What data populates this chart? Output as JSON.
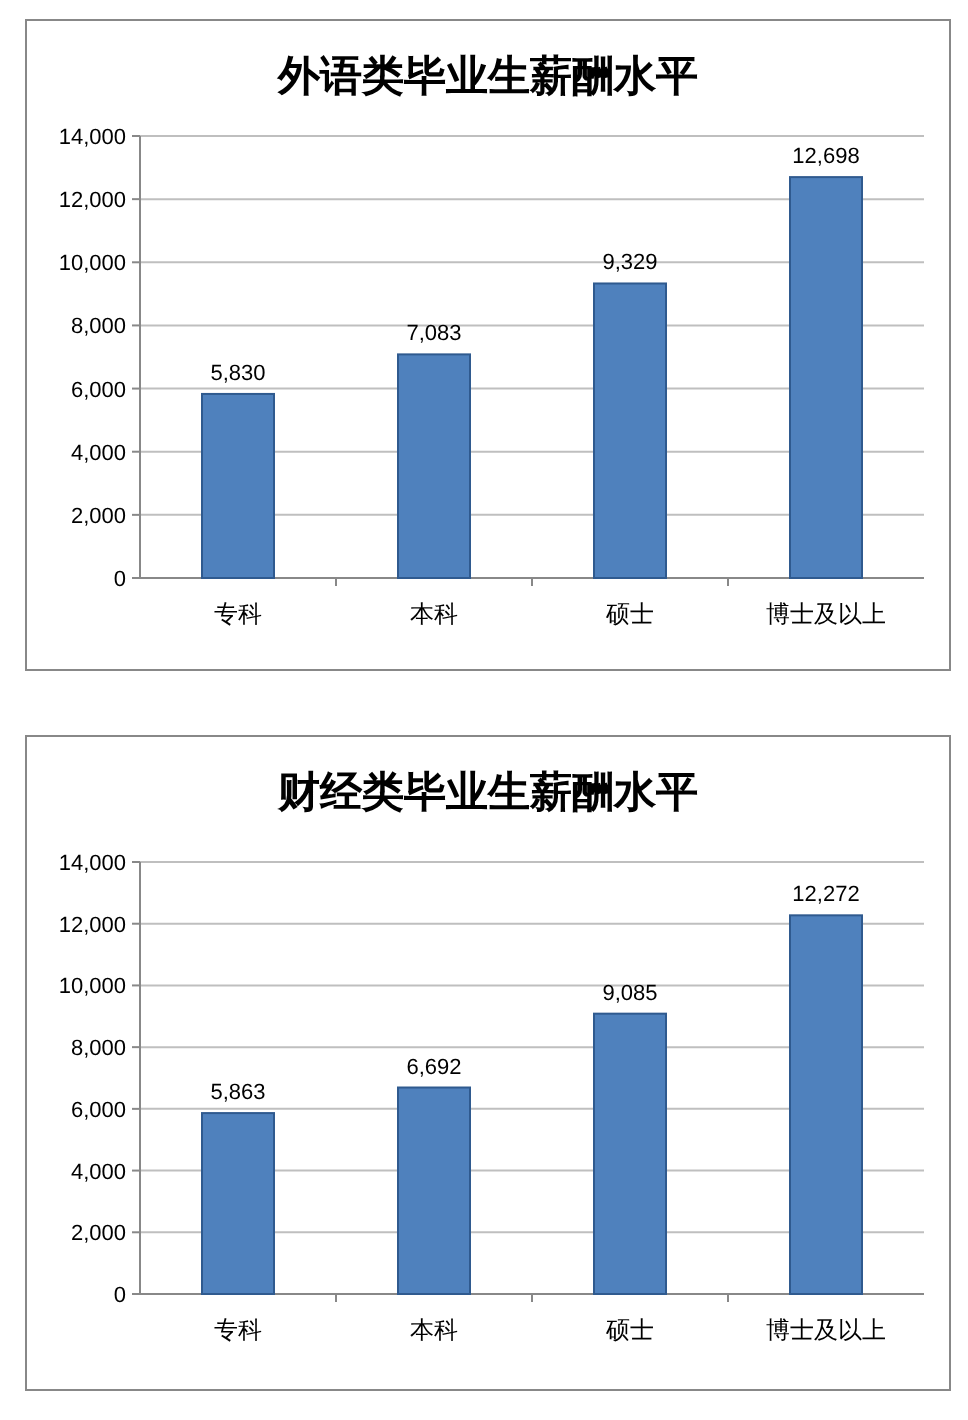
{
  "chart_data": [
    {
      "type": "bar",
      "title": "外语类毕业生薪酬水平",
      "categories": [
        "专科",
        "本科",
        "硕士",
        "博士及以上"
      ],
      "values": [
        5830,
        7083,
        9329,
        12698
      ],
      "value_labels": [
        "5,830",
        "7,083",
        "9,329",
        "12,698"
      ],
      "color": "#4f81bd",
      "ylim": [
        0,
        14000
      ],
      "yticks": [
        0,
        {
          "value": 2000,
          "label": "2,000"
        },
        {
          "value": 4000,
          "label": "4,000"
        },
        {
          "value": 6000,
          "label": "6,000"
        },
        {
          "value": 8000,
          "label": "8,000"
        },
        {
          "value": 10000,
          "label": "10,000"
        },
        {
          "value": 12000,
          "label": "12,000"
        },
        {
          "value": 14000,
          "label": "14,000"
        }
      ],
      "grid": "y"
    },
    {
      "type": "bar",
      "title": "财经类毕业生薪酬水平",
      "categories": [
        "专科",
        "本科",
        "硕士",
        "博士及以上"
      ],
      "values": [
        5863,
        6692,
        9085,
        12272
      ],
      "value_labels": [
        "5,863",
        "6,692",
        "9,085",
        "12,272"
      ],
      "color": "#4f81bd",
      "ylim": [
        0,
        14000
      ],
      "yticks": [
        0,
        {
          "value": 2000,
          "label": "2,000"
        },
        {
          "value": 4000,
          "label": "4,000"
        },
        {
          "value": 6000,
          "label": "6,000"
        },
        {
          "value": 8000,
          "label": "8,000"
        },
        {
          "value": 10000,
          "label": "10,000"
        },
        {
          "value": 12000,
          "label": "12,000"
        },
        {
          "value": 14000,
          "label": "14,000"
        }
      ],
      "grid": "y"
    }
  ]
}
